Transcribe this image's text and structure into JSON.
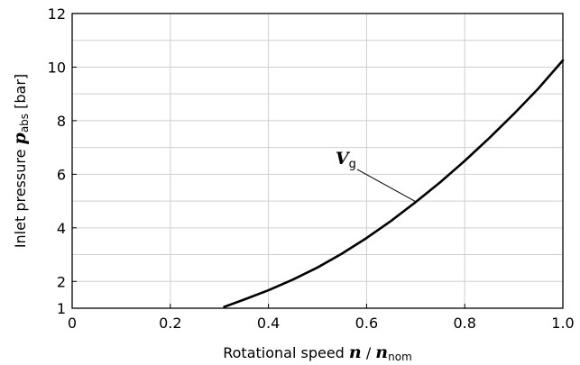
{
  "chart_data": {
    "type": "line",
    "xlabel": {
      "prefix": "Rotational speed ",
      "var": "n",
      "slash": " / ",
      "var2": "n",
      "sub": "nom"
    },
    "ylabel": {
      "prefix": "Inlet pressure ",
      "var": "p",
      "sub": "abs",
      "suffix": " [bar]"
    },
    "xlim": [
      0,
      1.0
    ],
    "ylim": [
      1,
      12
    ],
    "x_ticks": [
      0,
      0.2,
      0.4,
      0.6,
      0.8,
      1.0
    ],
    "x_tick_labels": [
      "0",
      "0.2",
      "0.4",
      "0.6",
      "0.8",
      "1.0"
    ],
    "y_ticks": [
      1,
      2,
      4,
      6,
      8,
      10,
      12
    ],
    "y_tick_labels": [
      "1",
      "2",
      "4",
      "6",
      "8",
      "10",
      "12"
    ],
    "grid": true,
    "grid_y_values": [
      1,
      2,
      3,
      4,
      5,
      6,
      7,
      8,
      9,
      10,
      11,
      12
    ],
    "grid_x_values": [
      0,
      0.2,
      0.4,
      0.6,
      0.8,
      1.0
    ],
    "series": [
      {
        "name": "",
        "x": [
          0.31,
          0.35,
          0.4,
          0.45,
          0.5,
          0.55,
          0.6,
          0.65,
          0.7,
          0.75,
          0.8,
          0.85,
          0.9,
          0.95,
          1.0
        ],
        "y": [
          1.05,
          1.32,
          1.67,
          2.07,
          2.52,
          3.04,
          3.62,
          4.26,
          4.96,
          5.7,
          6.5,
          7.35,
          8.25,
          9.2,
          10.25
        ]
      }
    ],
    "annotations": [
      {
        "text_var": "V",
        "text_sub": "g",
        "label_x": 0.555,
        "label_y": 6.25,
        "point_x": 0.702,
        "point_y": 4.96
      }
    ],
    "colors": {
      "line": "#000000",
      "grid": "#cfcfcf",
      "frame": "#000000"
    }
  }
}
